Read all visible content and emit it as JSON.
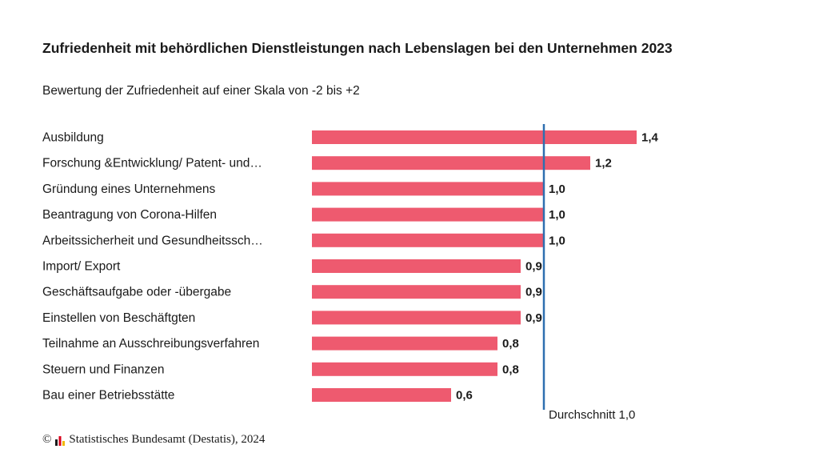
{
  "header": {
    "title": "Zufriedenheit mit behördlichen Dienstleistungen nach Lebenslagen bei den Unternehmen 2023",
    "subtitle": "Bewertung der Zufriedenheit auf einer Skala von -2 bis +2"
  },
  "footer": {
    "copyright_symbol": "©",
    "source": "Statistisches Bundesamt (Destatis), 2024"
  },
  "chart_data": {
    "type": "bar",
    "orientation": "horizontal",
    "categories": [
      "Ausbildung",
      "Forschung &Entwicklung/ Patent- und…",
      "Gründung eines Unternehmens",
      "Beantragung von Corona-Hilfen",
      "Arbeitssicherheit und Gesundheitssch…",
      "Import/ Export",
      "Geschäftsaufgabe oder -übergabe",
      "Einstellen von Beschäftgten",
      "Teilnahme an Ausschreibungsverfahren",
      "Steuern und Finanzen",
      "Bau einer Betriebsstätte"
    ],
    "values": [
      1.4,
      1.2,
      1.0,
      1.0,
      1.0,
      0.9,
      0.9,
      0.9,
      0.8,
      0.8,
      0.6
    ],
    "value_labels": [
      "1,4",
      "1,2",
      "1,0",
      "1,0",
      "1,0",
      "0,9",
      "0,9",
      "0,9",
      "0,8",
      "0,8",
      "0,6"
    ],
    "xlim": [
      0,
      1.4
    ],
    "reference_line": {
      "value": 1.0,
      "label": "Durchschnitt 1,0",
      "color": "#2e6fb0"
    },
    "bar_color": "#ee5a6f",
    "grid": false,
    "legend": "none"
  }
}
